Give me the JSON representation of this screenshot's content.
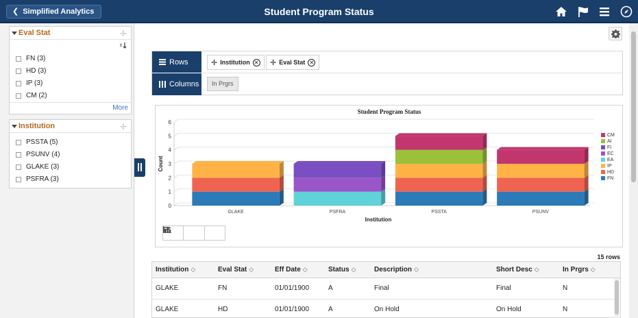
{
  "header": {
    "back_label": "Simplified Analytics",
    "title": "Student Program Status",
    "bg_color": "#1a3f6b",
    "icons": [
      "home-icon",
      "flag-icon",
      "menu-icon",
      "compass-icon"
    ]
  },
  "facets": [
    {
      "title": "Eval Stat",
      "items": [
        {
          "label": "FN (3)"
        },
        {
          "label": "HD (3)"
        },
        {
          "label": "IP (3)"
        },
        {
          "label": "CM (2)"
        }
      ],
      "more_label": "More"
    },
    {
      "title": "Institution",
      "items": [
        {
          "label": "PSSTA (5)"
        },
        {
          "label": "PSUNV (4)"
        },
        {
          "label": "GLAKE (3)"
        },
        {
          "label": "PSFRA (3)"
        }
      ]
    }
  ],
  "pivot": {
    "rows_label": "Rows",
    "columns_label": "Columns",
    "row_chips": [
      "Institution",
      "Eval Stat"
    ],
    "column_chip": "In Prgrs"
  },
  "chart_data": {
    "type": "bar",
    "stacked": true,
    "three_d": true,
    "title": "Student Program Status",
    "xlabel": "Institution",
    "ylabel": "Count",
    "ylim": [
      0,
      6
    ],
    "yticks": [
      0,
      1,
      2,
      3,
      4,
      5,
      6
    ],
    "categories": [
      "GLAKE",
      "PSFRA",
      "PSSTA",
      "PSUNV"
    ],
    "series": [
      {
        "name": "FN",
        "color": "#2d7ab8",
        "values": [
          1,
          0,
          1,
          1
        ]
      },
      {
        "name": "HD",
        "color": "#ee6450",
        "values": [
          1,
          0,
          1,
          1
        ]
      },
      {
        "name": "IP",
        "color": "#ffb347",
        "values": [
          1,
          0,
          1,
          1
        ]
      },
      {
        "name": "EA",
        "color": "#5fd3d8",
        "values": [
          0,
          1,
          0,
          0
        ]
      },
      {
        "name": "EC",
        "color": "#9a55c8",
        "values": [
          0,
          1,
          0,
          0
        ]
      },
      {
        "name": "FI",
        "color": "#7a4fc2",
        "values": [
          0,
          1,
          0,
          0
        ]
      },
      {
        "name": "AI",
        "color": "#9bc13b",
        "values": [
          0,
          0,
          1,
          0
        ]
      },
      {
        "name": "CM",
        "color": "#c2366e",
        "values": [
          0,
          0,
          1,
          1
        ]
      }
    ],
    "legend": [
      "CM",
      "AI",
      "FI",
      "EC",
      "EA",
      "IP",
      "HD",
      "FN"
    ],
    "legend_position": "right",
    "grid": true
  },
  "grid": {
    "row_count_label": "15 rows",
    "columns": [
      "Institution",
      "Eval Stat",
      "Eff Date",
      "Status",
      "Description",
      "Short Desc",
      "In Prgrs"
    ],
    "sort_glyph": "◇",
    "rows": [
      [
        "GLAKE",
        "FN",
        "01/01/1900",
        "A",
        "Final",
        "Final",
        "N"
      ],
      [
        "GLAKE",
        "HD",
        "01/01/1900",
        "A",
        "On Hold",
        "On Hold",
        "N"
      ]
    ]
  }
}
